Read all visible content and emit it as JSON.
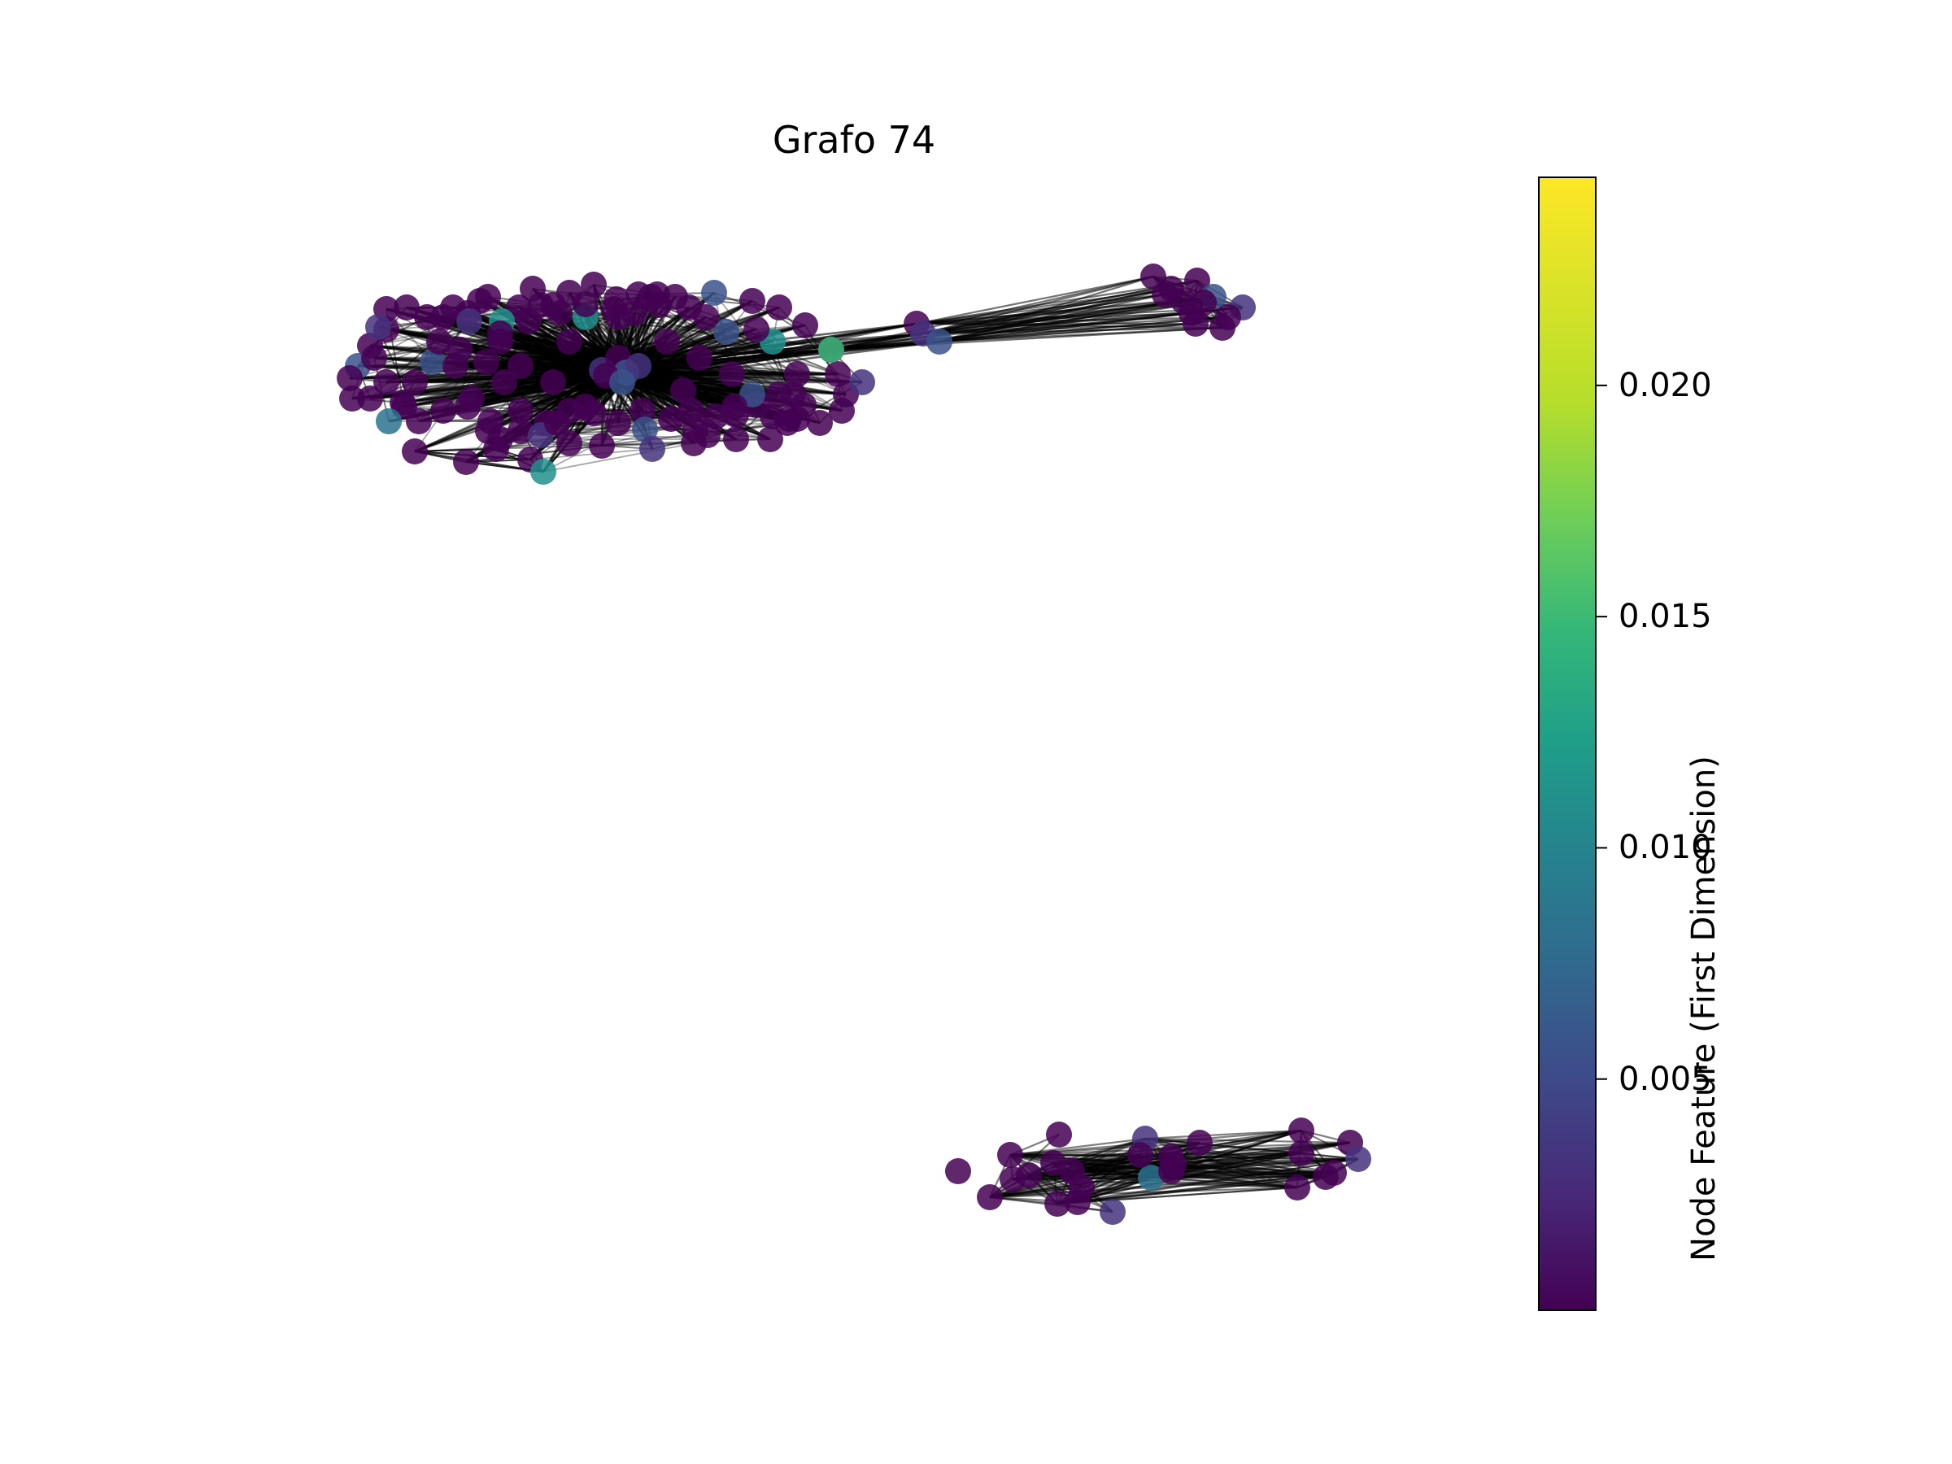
{
  "title": "Grafo 74",
  "colorbar": {
    "label": "Node Feature (First Dimension)",
    "colormap": "viridis",
    "range": [
      0.0,
      0.0245
    ],
    "ticks": [
      {
        "value": 0.005,
        "label": "0.005"
      },
      {
        "value": 0.01,
        "label": "0.010"
      },
      {
        "value": 0.015,
        "label": "0.015"
      },
      {
        "value": 0.02,
        "label": "0.020"
      }
    ]
  },
  "edge_color": "#000000",
  "components": [
    {
      "name": "large-star-component",
      "node_count": 120,
      "hub_count": 6
    },
    {
      "name": "right-satellite-cluster",
      "node_count": 12
    },
    {
      "name": "bottom-cluster",
      "node_count": 26
    }
  ]
}
